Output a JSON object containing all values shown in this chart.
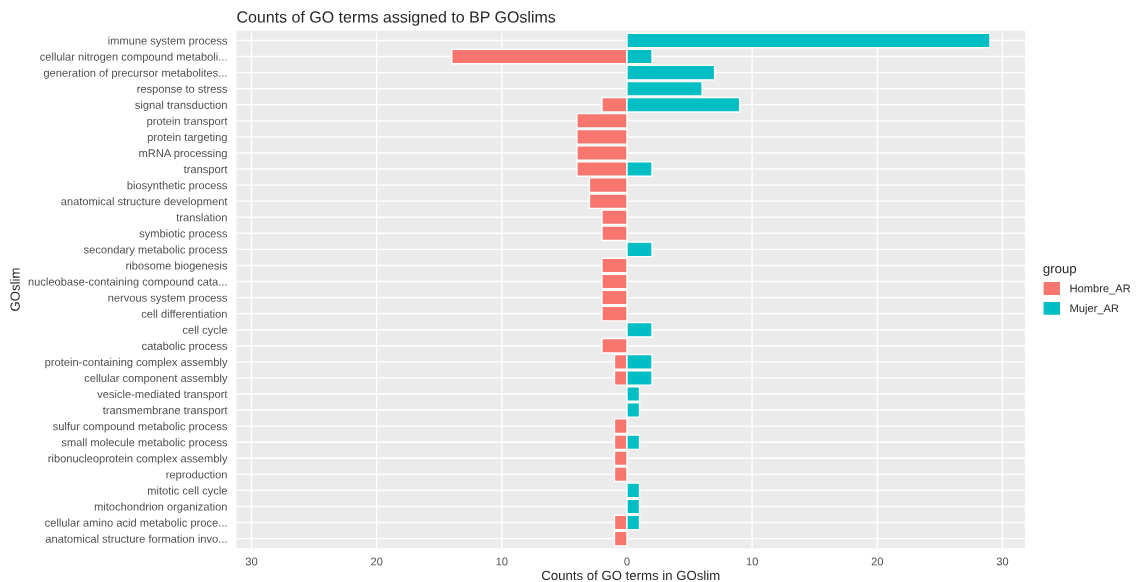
{
  "chart_data": {
    "type": "bar",
    "orientation": "horizontal",
    "title": "Counts of GO terms assigned to BP GOslims",
    "xlabel": "Counts of GO terms in GOslim",
    "ylabel": "GOslim",
    "legend_title": "group",
    "legend": "right",
    "grid": true,
    "categories": [
      "immune system process",
      "cellular nitrogen compound metaboli...",
      "generation of precursor metabolites...",
      "response to stress",
      "signal transduction",
      "protein transport",
      "protein targeting",
      "mRNA processing",
      "transport",
      "biosynthetic process",
      "anatomical structure development",
      "translation",
      "symbiotic process",
      "secondary metabolic process",
      "ribosome biogenesis",
      "nucleobase-containing compound cata...",
      "nervous system process",
      "cell differentiation",
      "cell cycle",
      "catabolic process",
      "protein-containing complex assembly",
      "cellular component assembly",
      "vesicle-mediated transport",
      "transmembrane transport",
      "sulfur compound metabolic process",
      "small molecule metabolic process",
      "ribonucleoprotein complex assembly",
      "reproduction",
      "mitotic cell cycle",
      "mitochondrion organization",
      "cellular amino acid metabolic proce...",
      "anatomical structure formation invo..."
    ],
    "series": [
      {
        "name": "Hombre_AR",
        "color": "#f8766d",
        "values": [
          null,
          -14,
          null,
          null,
          -2,
          -4,
          -4,
          -4,
          -4,
          -3,
          -3,
          -2,
          -2,
          null,
          -2,
          -2,
          -2,
          -2,
          null,
          -2,
          -1,
          -1,
          null,
          null,
          -1,
          -1,
          -1,
          -1,
          null,
          null,
          -1,
          -1
        ]
      },
      {
        "name": "Mujer_AR",
        "color": "#00bfc4",
        "values": [
          29,
          2,
          7,
          6,
          9,
          null,
          null,
          null,
          2,
          null,
          null,
          null,
          null,
          2,
          null,
          null,
          null,
          null,
          2,
          null,
          2,
          2,
          1,
          1,
          null,
          1,
          null,
          null,
          1,
          1,
          1,
          null
        ]
      }
    ],
    "xlim": [
      -31.2,
      31.8
    ],
    "xticks": [
      {
        "value": -30,
        "label": "30"
      },
      {
        "value": -20,
        "label": "20"
      },
      {
        "value": -10,
        "label": "10"
      },
      0,
      10,
      20,
      30
    ]
  }
}
